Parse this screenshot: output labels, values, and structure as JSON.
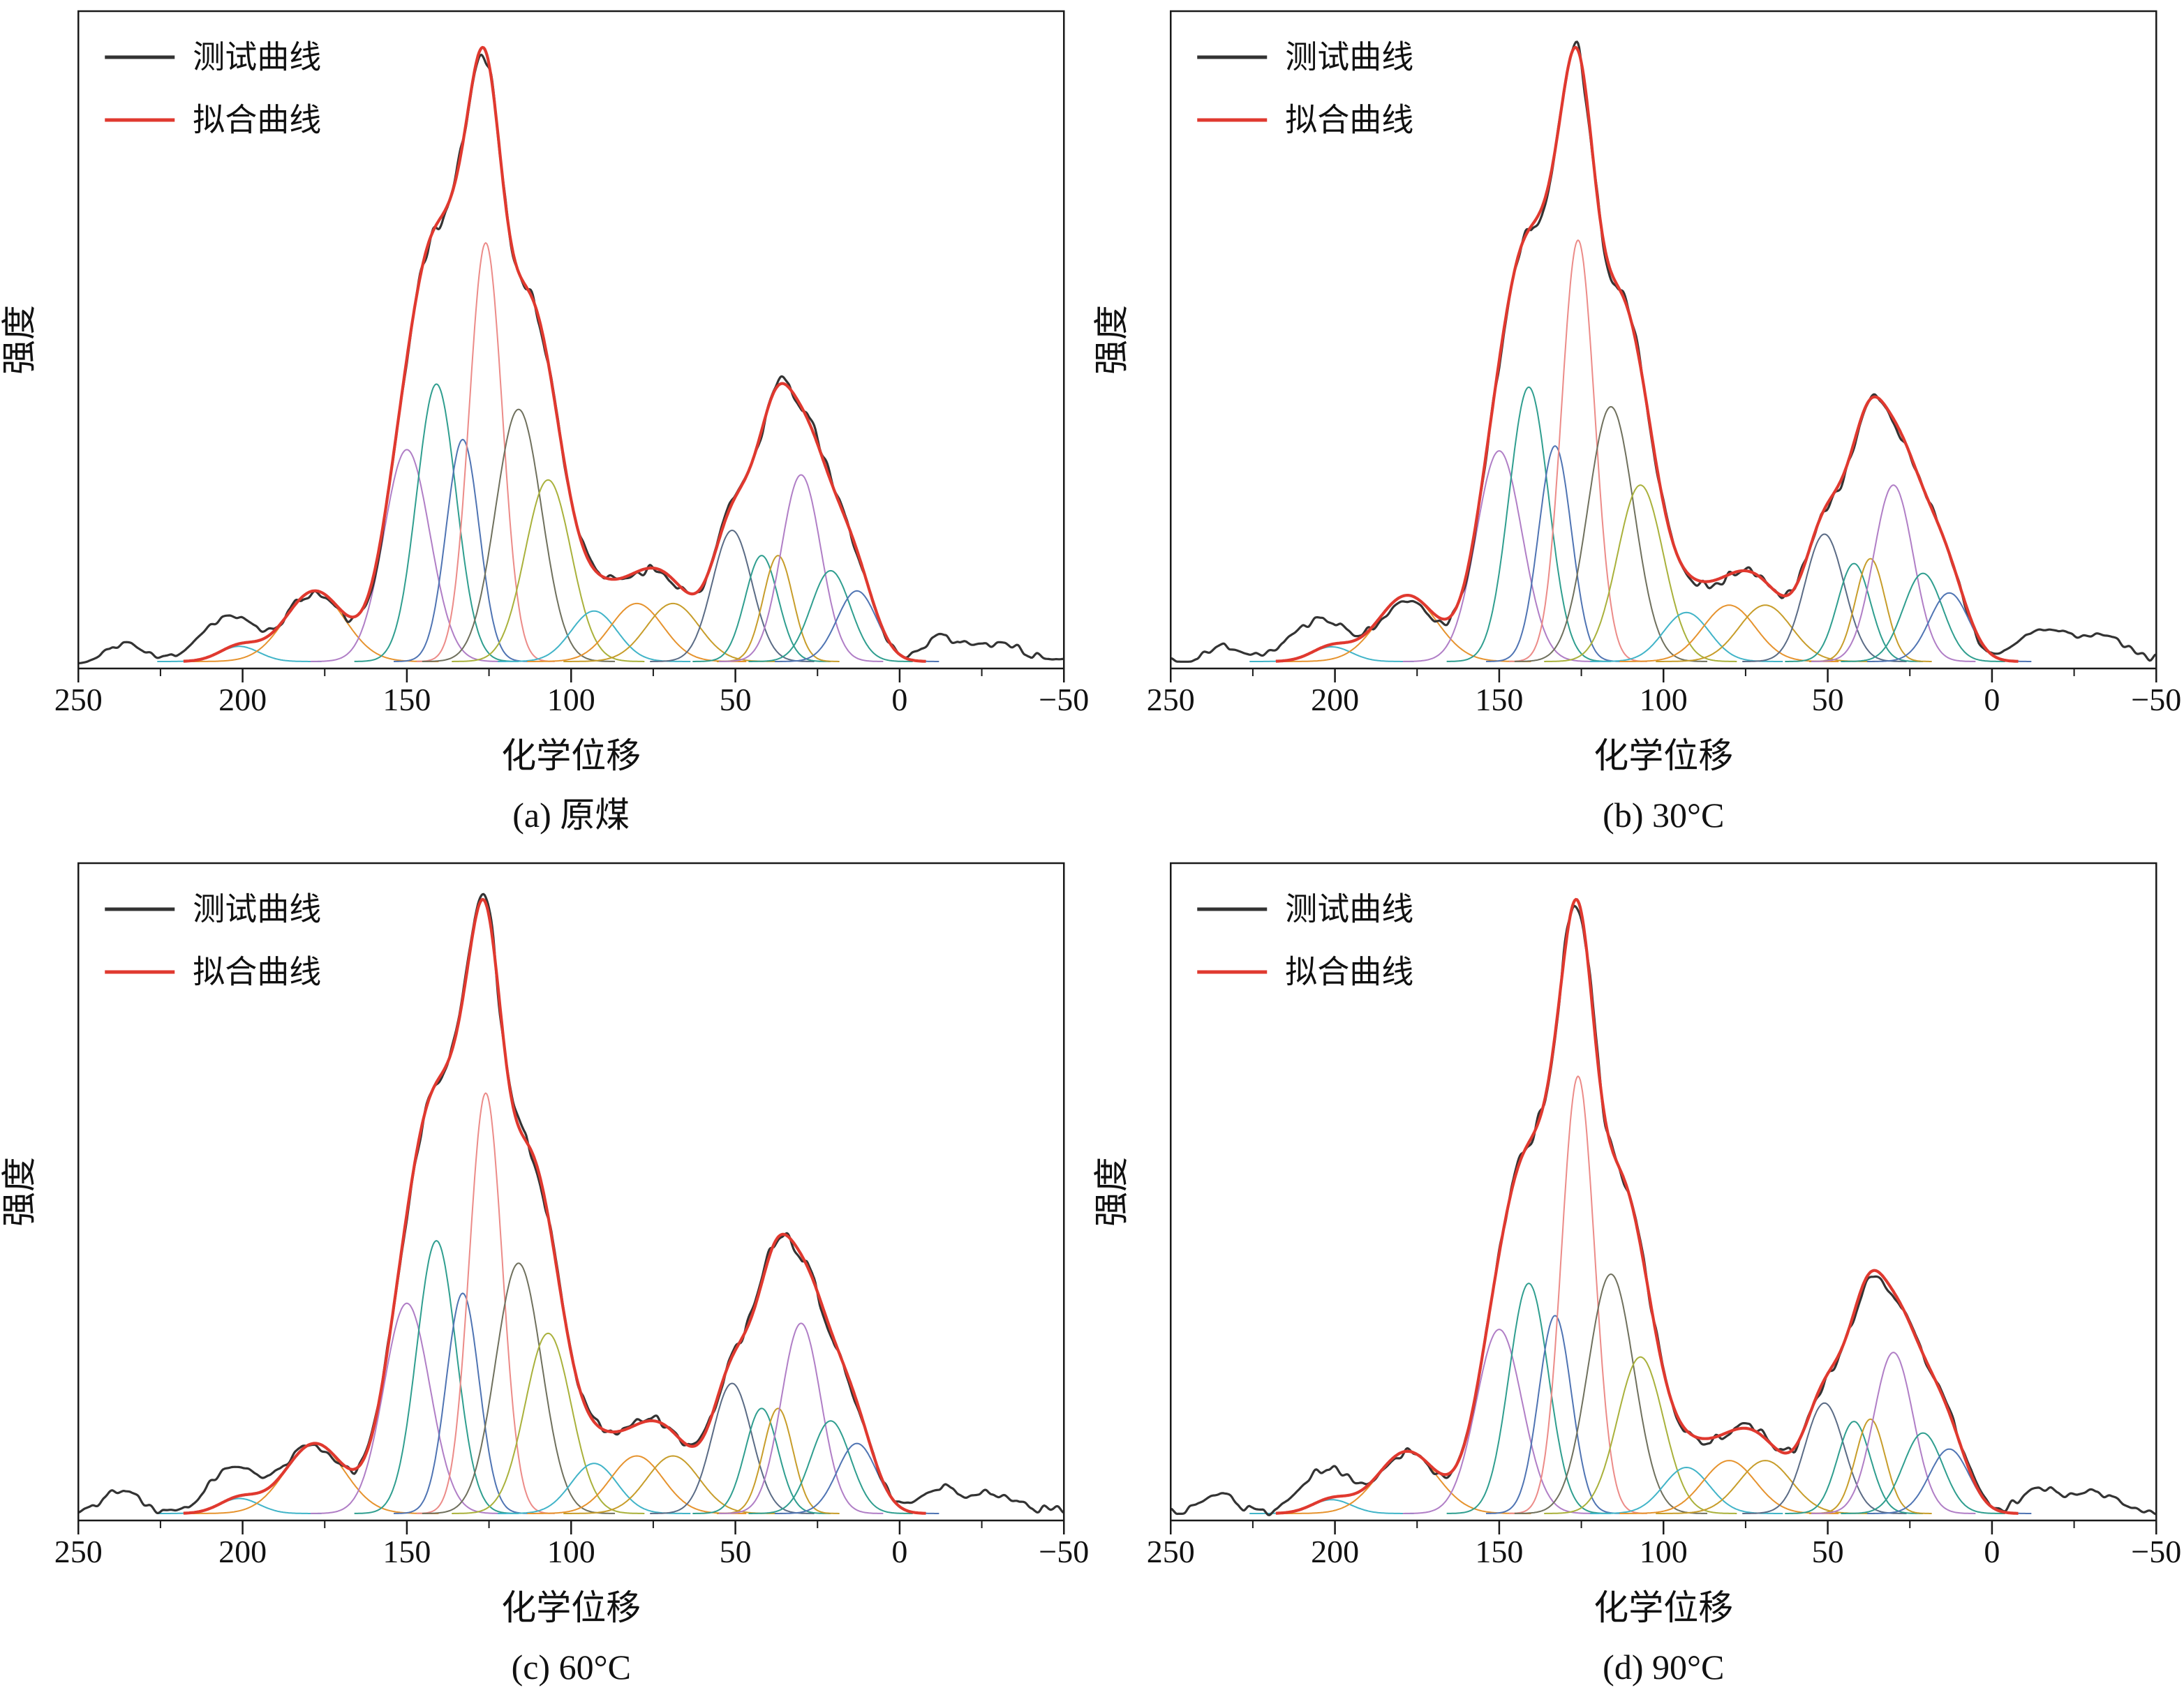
{
  "legend": {
    "measured": "测试曲线",
    "fitted": "拟合曲线",
    "position": "top-left"
  },
  "colors": {
    "measured": "#333333",
    "fitted": "#e0392f",
    "axis": "#1a1a1a"
  },
  "palette": {
    "purple": "#b07ec6",
    "teal": "#2f9e8f",
    "blue": "#4f74b3",
    "pink": "#ec8b88",
    "darkolive": "#6f705d",
    "olive": "#a9b13b",
    "cyan": "#41b4c8",
    "orange": "#e6932e",
    "mustard": "#c79d2a",
    "slate": "#5a6b85"
  },
  "chart_data": [
    {
      "type": "line",
      "caption": "(a) 原煤",
      "xlabel": "化学位移",
      "ylabel": "强度",
      "x_range": [
        250,
        -50
      ],
      "x_ticks": [
        250,
        200,
        150,
        100,
        50,
        0,
        -50
      ],
      "grid": false,
      "legend_entries": [
        "测试曲线",
        "拟合曲线"
      ],
      "seed": 11,
      "noise_amp": 0.012,
      "peaks": [
        [
          201,
          0.03,
          6,
          "cyan"
        ],
        [
          178,
          0.14,
          9,
          "orange"
        ],
        [
          150,
          0.42,
          7,
          "purple"
        ],
        [
          141,
          0.55,
          6,
          "teal"
        ],
        [
          133,
          0.44,
          5,
          "blue"
        ],
        [
          126,
          0.83,
          5,
          "pink"
        ],
        [
          116,
          0.5,
          7,
          "darkolive"
        ],
        [
          107,
          0.36,
          7,
          "olive"
        ],
        [
          93,
          0.1,
          7,
          "cyan"
        ],
        [
          80,
          0.115,
          8,
          "orange"
        ],
        [
          69,
          0.115,
          8,
          "mustard"
        ],
        [
          51,
          0.26,
          6,
          "slate"
        ],
        [
          42,
          0.21,
          5,
          "teal"
        ],
        [
          37,
          0.21,
          4.5,
          "mustard"
        ],
        [
          30,
          0.37,
          6,
          "purple"
        ],
        [
          21,
          0.18,
          6,
          "teal"
        ],
        [
          13,
          0.14,
          6,
          "blue"
        ]
      ],
      "extra_bumps": [
        [
          236,
          0.03,
          5
        ],
        [
          207,
          0.055,
          8
        ],
        [
          -13,
          0.04,
          6
        ],
        [
          -30,
          0.03,
          7
        ]
      ]
    },
    {
      "type": "line",
      "caption": "(b) 30°C",
      "xlabel": "化学位移",
      "ylabel": "强度",
      "x_range": [
        250,
        -50
      ],
      "x_ticks": [
        250,
        200,
        150,
        100,
        50,
        0,
        -50
      ],
      "grid": false,
      "legend_entries": [
        "测试曲线",
        "拟合曲线"
      ],
      "seed": 22,
      "noise_amp": 0.013,
      "peaks": [
        [
          201,
          0.03,
          6,
          "cyan"
        ],
        [
          178,
          0.135,
          9,
          "orange"
        ],
        [
          150,
          0.43,
          7,
          "purple"
        ],
        [
          141,
          0.56,
          6,
          "teal"
        ],
        [
          133,
          0.44,
          5,
          "blue"
        ],
        [
          126,
          0.86,
          5,
          "pink"
        ],
        [
          116,
          0.52,
          7,
          "darkolive"
        ],
        [
          107,
          0.36,
          7,
          "olive"
        ],
        [
          93,
          0.1,
          7,
          "cyan"
        ],
        [
          80,
          0.115,
          8,
          "orange"
        ],
        [
          69,
          0.115,
          8,
          "mustard"
        ],
        [
          51,
          0.26,
          6,
          "slate"
        ],
        [
          42,
          0.2,
          5,
          "teal"
        ],
        [
          37,
          0.21,
          4.5,
          "mustard"
        ],
        [
          30,
          0.36,
          6,
          "purple"
        ],
        [
          21,
          0.18,
          6,
          "teal"
        ],
        [
          13,
          0.14,
          6,
          "blue"
        ]
      ],
      "extra_bumps": [
        [
          233,
          0.028,
          5
        ],
        [
          206,
          0.05,
          8
        ],
        [
          -15,
          0.05,
          7
        ],
        [
          -33,
          0.038,
          8
        ]
      ]
    },
    {
      "type": "line",
      "caption": "(c) 60°C",
      "xlabel": "化学位移",
      "ylabel": "强度",
      "x_range": [
        250,
        -50
      ],
      "x_ticks": [
        250,
        200,
        150,
        100,
        50,
        0,
        -50
      ],
      "grid": false,
      "legend_entries": [
        "测试曲线",
        "拟合曲线"
      ],
      "seed": 33,
      "noise_amp": 0.012,
      "peaks": [
        [
          201,
          0.03,
          6,
          "cyan"
        ],
        [
          178,
          0.14,
          9,
          "orange"
        ],
        [
          150,
          0.42,
          7,
          "purple"
        ],
        [
          141,
          0.545,
          6,
          "teal"
        ],
        [
          133,
          0.44,
          5,
          "blue"
        ],
        [
          126,
          0.84,
          5,
          "pink"
        ],
        [
          116,
          0.5,
          7,
          "darkolive"
        ],
        [
          107,
          0.36,
          7,
          "olive"
        ],
        [
          93,
          0.1,
          7,
          "cyan"
        ],
        [
          80,
          0.115,
          8,
          "orange"
        ],
        [
          69,
          0.115,
          8,
          "mustard"
        ],
        [
          51,
          0.26,
          6,
          "slate"
        ],
        [
          42,
          0.21,
          5,
          "teal"
        ],
        [
          37,
          0.21,
          4.5,
          "mustard"
        ],
        [
          30,
          0.38,
          6,
          "purple"
        ],
        [
          21,
          0.185,
          6,
          "teal"
        ],
        [
          13,
          0.14,
          6,
          "blue"
        ]
      ],
      "extra_bumps": [
        [
          238,
          0.032,
          6
        ],
        [
          205,
          0.05,
          8
        ],
        [
          -12,
          0.04,
          6
        ],
        [
          -28,
          0.032,
          7
        ]
      ]
    },
    {
      "type": "line",
      "caption": "(d) 90°C",
      "xlabel": "化学位移",
      "ylabel": "强度",
      "x_range": [
        250,
        -50
      ],
      "x_ticks": [
        250,
        200,
        150,
        100,
        50,
        0,
        -50
      ],
      "grid": false,
      "legend_entries": [
        "测试曲线",
        "拟合曲线"
      ],
      "seed": 44,
      "noise_amp": 0.012,
      "peaks": [
        [
          201,
          0.03,
          6,
          "cyan"
        ],
        [
          178,
          0.135,
          9,
          "orange"
        ],
        [
          150,
          0.4,
          7,
          "purple"
        ],
        [
          141,
          0.5,
          6,
          "teal"
        ],
        [
          133,
          0.43,
          5,
          "blue"
        ],
        [
          126,
          0.95,
          5,
          "pink"
        ],
        [
          116,
          0.52,
          7,
          "darkolive"
        ],
        [
          107,
          0.34,
          7,
          "olive"
        ],
        [
          93,
          0.1,
          7,
          "cyan"
        ],
        [
          80,
          0.115,
          8,
          "orange"
        ],
        [
          69,
          0.115,
          8,
          "mustard"
        ],
        [
          51,
          0.24,
          6,
          "slate"
        ],
        [
          42,
          0.2,
          5,
          "teal"
        ],
        [
          37,
          0.205,
          4.5,
          "mustard"
        ],
        [
          30,
          0.35,
          6,
          "purple"
        ],
        [
          21,
          0.175,
          6,
          "teal"
        ],
        [
          13,
          0.14,
          6,
          "blue"
        ]
      ],
      "extra_bumps": [
        [
          235,
          0.03,
          5
        ],
        [
          204,
          0.048,
          8
        ],
        [
          -14,
          0.045,
          6
        ],
        [
          -31,
          0.034,
          7
        ]
      ]
    }
  ]
}
